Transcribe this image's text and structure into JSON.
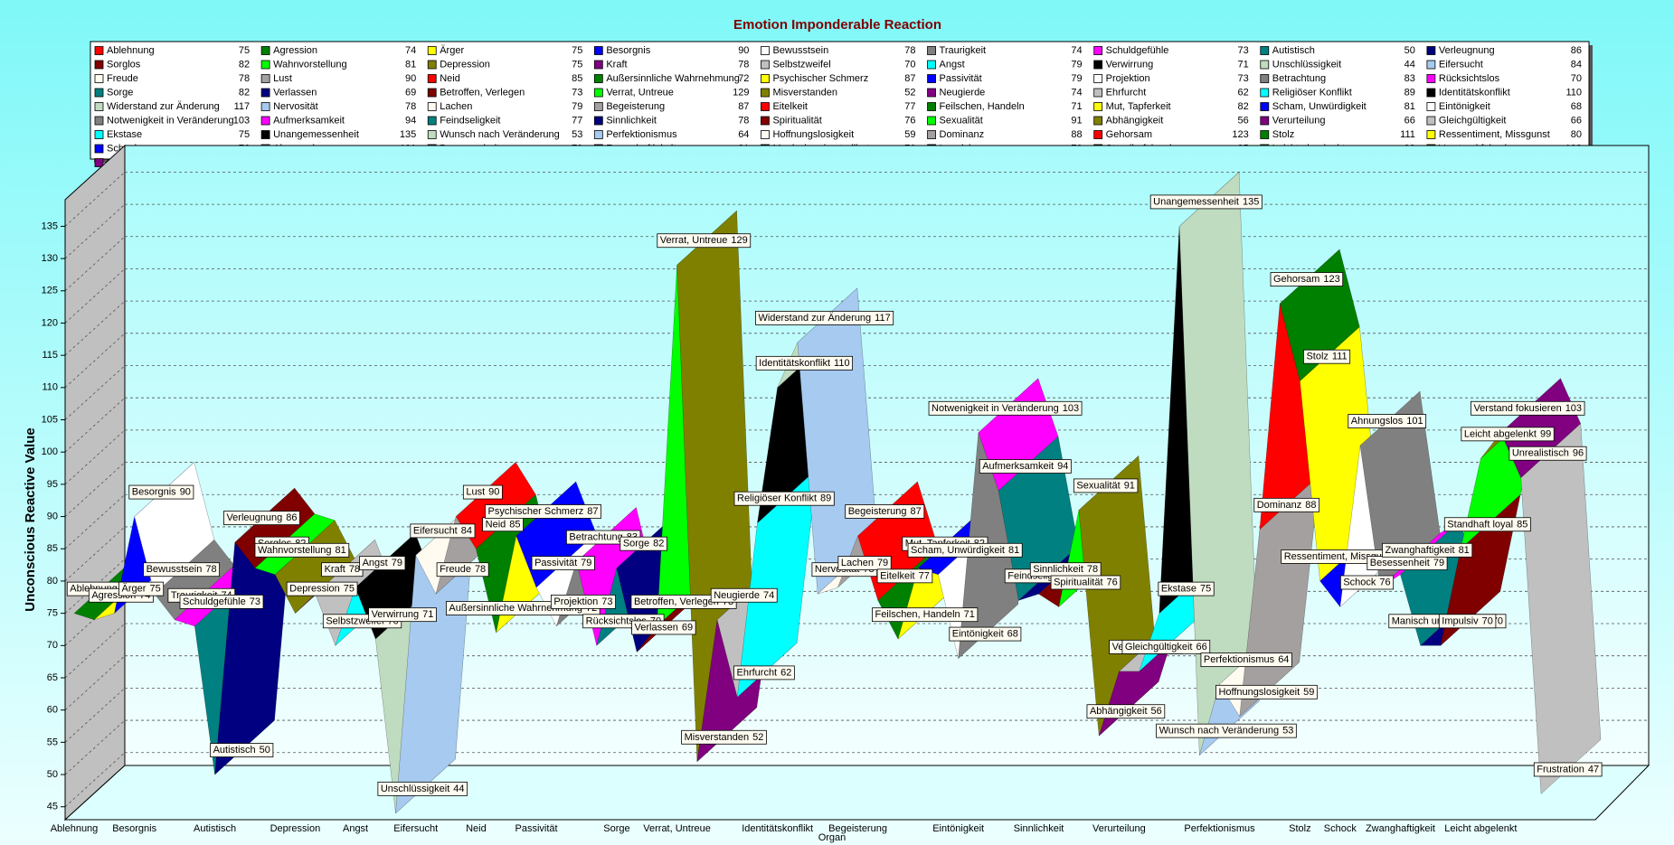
{
  "chart_data": {
    "type": "area",
    "title": "Emotion Imponderable Reaction",
    "x_label": "Organ",
    "y_label": "Unconscious Reactive Value",
    "categories": [
      "Ablehnung",
      "Agression",
      "Ärger",
      "Besorgnis",
      "Bewusstsein",
      "Traurigkeit",
      "Schuldgefühle",
      "Autistisch",
      "Verleugnung",
      "Sorglos",
      "Wahnvorstellung",
      "Depression",
      "Kraft",
      "Selbstzweifel",
      "Angst",
      "Verwirrung",
      "Unschlüssigkeit",
      "Eifersucht",
      "Freude",
      "Lust",
      "Neid",
      "Außersinnliche Wahrnehmung",
      "Psychischer Schmerz",
      "Passivität",
      "Projektion",
      "Betrachtung",
      "Rücksichtslos",
      "Sorge",
      "Verlassen",
      "Betroffen, Verlegen",
      "Verrat, Untreue",
      "Misverstanden",
      "Neugierde",
      "Ehrfurcht",
      "Religiöser Konflikt",
      "Identitätskonflikt",
      "Widerstand zur Änderung",
      "Nervosität",
      "Lachen",
      "Begeisterung",
      "Eitelkeit",
      "Feilschen, Handeln",
      "Mut, Tapferkeit",
      "Scham, Unwürdigkeit",
      "Eintönigkeit",
      "Notwenigkeit in Veränderung",
      "Aufmerksamkeit",
      "Feindseligkeit",
      "Sinnlichkeit",
      "Spiritualität",
      "Sexualität",
      "Abhängigkeit",
      "Verurteilung",
      "Gleichgültigkeit",
      "Ekstase",
      "Unangemessenheit",
      "Wunsch nach Veränderung",
      "Perfektionismus",
      "Hoffnungslosigkeit",
      "Dominanz",
      "Gehorsam",
      "Stolz",
      "Ressentiment, Missgunst",
      "Schock",
      "Ahnungslos",
      "Besessenheit",
      "Zwanghaftigkeit",
      "Manisch unkontrolliert",
      "Impulsiv",
      "Standhaft loyal",
      "Leicht abgelenkt",
      "Verstand fokusieren",
      "Unrealistisch",
      "Frustration"
    ],
    "values": [
      75,
      74,
      75,
      90,
      78,
      74,
      73,
      50,
      86,
      82,
      81,
      75,
      78,
      70,
      79,
      71,
      44,
      84,
      78,
      90,
      85,
      72,
      87,
      79,
      73,
      83,
      70,
      82,
      69,
      73,
      129,
      52,
      74,
      62,
      89,
      110,
      117,
      78,
      79,
      87,
      77,
      71,
      82,
      81,
      68,
      103,
      94,
      77,
      78,
      76,
      91,
      56,
      66,
      66,
      75,
      135,
      53,
      64,
      59,
      88,
      123,
      111,
      80,
      76,
      101,
      79,
      81,
      70,
      70,
      85,
      99,
      103,
      96,
      47
    ],
    "palette": [
      "#ff0000",
      "#008000",
      "#ffff00",
      "#0000ff",
      "#ffffff",
      "#808080",
      "#ff00ff",
      "#008080",
      "#000080",
      "#800000",
      "#00ff00",
      "#808000",
      "#800080",
      "#c0c0c0",
      "#00ffff",
      "#000000",
      "#c0dcc0",
      "#a6caf0",
      "#fffbf0",
      "#a4a0a0"
    ],
    "ylim": [
      43,
      138
    ],
    "yticks": [
      45,
      50,
      55,
      60,
      65,
      70,
      75,
      80,
      85,
      90,
      95,
      100,
      105,
      110,
      115,
      120,
      125,
      130,
      135
    ],
    "grid": true,
    "legend": "top"
  }
}
